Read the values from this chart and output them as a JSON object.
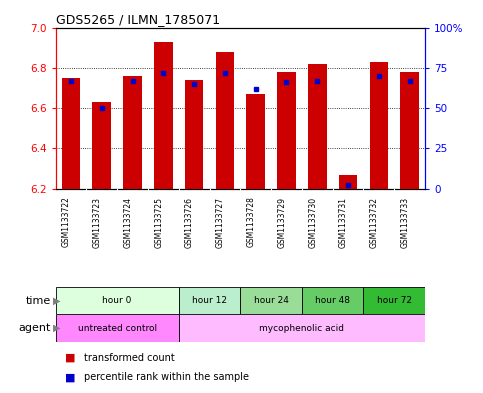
{
  "title": "GDS5265 / ILMN_1785071",
  "samples": [
    "GSM1133722",
    "GSM1133723",
    "GSM1133724",
    "GSM1133725",
    "GSM1133726",
    "GSM1133727",
    "GSM1133728",
    "GSM1133729",
    "GSM1133730",
    "GSM1133731",
    "GSM1133732",
    "GSM1133733"
  ],
  "transformed_counts": [
    6.75,
    6.63,
    6.76,
    6.93,
    6.74,
    6.88,
    6.67,
    6.78,
    6.82,
    6.27,
    6.83,
    6.78
  ],
  "percentile_ranks": [
    67,
    50,
    67,
    72,
    65,
    72,
    62,
    66,
    67,
    2,
    70,
    67
  ],
  "y_min": 6.2,
  "y_max": 7.0,
  "y_ticks": [
    6.2,
    6.4,
    6.6,
    6.8,
    7.0
  ],
  "right_y_ticks": [
    0,
    25,
    50,
    75,
    100
  ],
  "right_y_labels": [
    "0",
    "25",
    "50",
    "75",
    "100%"
  ],
  "bar_color": "#cc0000",
  "dot_color": "#0000cc",
  "background_color": "#ffffff",
  "time_groups": [
    {
      "label": "hour 0",
      "start": 0,
      "end": 4,
      "color": "#ddffdd"
    },
    {
      "label": "hour 12",
      "start": 4,
      "end": 6,
      "color": "#bbeecc"
    },
    {
      "label": "hour 24",
      "start": 6,
      "end": 8,
      "color": "#99dd99"
    },
    {
      "label": "hour 48",
      "start": 8,
      "end": 10,
      "color": "#66cc66"
    },
    {
      "label": "hour 72",
      "start": 10,
      "end": 12,
      "color": "#33bb33"
    }
  ],
  "agent_groups": [
    {
      "label": "untreated control",
      "start": 0,
      "end": 4,
      "color": "#ff88ff"
    },
    {
      "label": "mycophenolic acid",
      "start": 4,
      "end": 12,
      "color": "#ffbbff"
    }
  ],
  "legend_items": [
    {
      "label": "transformed count",
      "color": "#cc0000"
    },
    {
      "label": "percentile rank within the sample",
      "color": "#0000cc"
    }
  ]
}
